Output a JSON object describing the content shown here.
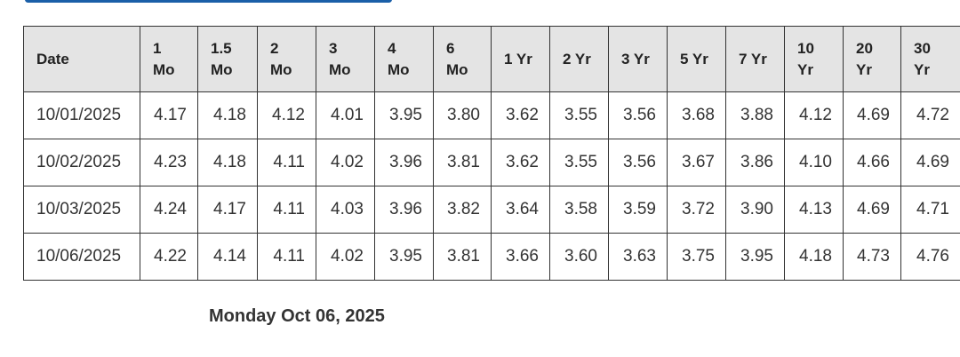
{
  "table": {
    "header": [
      "Date",
      "1 Mo",
      "1.5 Mo",
      "2 Mo",
      "3 Mo",
      "4 Mo",
      "6 Mo",
      "1 Yr",
      "2 Yr",
      "3 Yr",
      "5 Yr",
      "7 Yr",
      "10 Yr",
      "20 Yr",
      "30 Yr"
    ],
    "rows": [
      [
        "10/01/2025",
        "4.17",
        "4.18",
        "4.12",
        "4.01",
        "3.95",
        "3.80",
        "3.62",
        "3.55",
        "3.56",
        "3.68",
        "3.88",
        "4.12",
        "4.69",
        "4.72"
      ],
      [
        "10/02/2025",
        "4.23",
        "4.18",
        "4.11",
        "4.02",
        "3.96",
        "3.81",
        "3.62",
        "3.55",
        "3.56",
        "3.67",
        "3.86",
        "4.10",
        "4.66",
        "4.69"
      ],
      [
        "10/03/2025",
        "4.24",
        "4.17",
        "4.11",
        "4.03",
        "3.96",
        "3.82",
        "3.64",
        "3.58",
        "3.59",
        "3.72",
        "3.90",
        "4.13",
        "4.69",
        "4.71"
      ],
      [
        "10/06/2025",
        "4.22",
        "4.14",
        "4.11",
        "4.02",
        "3.95",
        "3.81",
        "3.66",
        "3.60",
        "3.63",
        "3.75",
        "3.95",
        "4.18",
        "4.73",
        "4.76"
      ]
    ]
  },
  "caption": "Monday Oct 06, 2025"
}
